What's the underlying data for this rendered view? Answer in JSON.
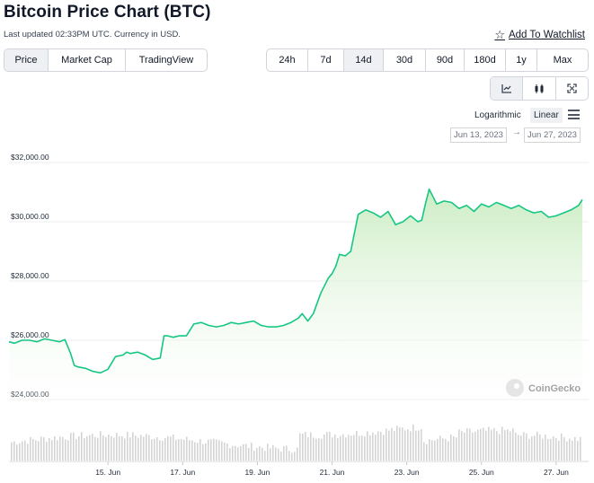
{
  "header": {
    "title": "Bitcoin Price Chart (BTC)",
    "last_updated": "Last updated 02:33PM UTC. Currency in USD.",
    "watchlist_label": "Add To Watchlist",
    "watchlist_icon": "star-outline-icon"
  },
  "type_tabs": [
    {
      "label": "Price",
      "active": true
    },
    {
      "label": "Market Cap",
      "active": false
    },
    {
      "label": "TradingView",
      "active": false
    }
  ],
  "range_tabs": [
    {
      "label": "24h",
      "active": false
    },
    {
      "label": "7d",
      "active": false
    },
    {
      "label": "14d",
      "active": true
    },
    {
      "label": "30d",
      "active": false
    },
    {
      "label": "90d",
      "active": false
    },
    {
      "label": "180d",
      "active": false
    },
    {
      "label": "1y",
      "active": false
    },
    {
      "label": "Max",
      "active": false
    }
  ],
  "view_buttons": [
    {
      "icon": "line-chart-icon",
      "active": true
    },
    {
      "icon": "candlestick-icon",
      "active": false
    },
    {
      "icon": "fullscreen-icon",
      "active": false
    }
  ],
  "scale": {
    "logarithmic_label": "Logarithmic",
    "linear_label": "Linear",
    "selected": "Linear",
    "menu_icon": "hamburger-menu-icon"
  },
  "date_range": {
    "from": "Jun 13, 2023",
    "to": "Jun 27, 2023",
    "separator": "→"
  },
  "watermark": "CoinGecko",
  "colors": {
    "line": "#16c784",
    "area_top": "#c9ecc0",
    "volume": "#d4d4d4",
    "grid": "#ededed"
  },
  "chart_data": {
    "type": "area",
    "ylim": [
      23900,
      32400
    ],
    "y_ticks": [
      24000,
      26000,
      28000,
      30000,
      32000
    ],
    "y_tick_labels": [
      "$24,000.00",
      "$26,000.00",
      "$28,000.00",
      "$30,000.00",
      "$32,000.00"
    ],
    "x_range": [
      12.35,
      27.7
    ],
    "x_ticks": [
      15,
      17,
      19,
      21,
      23,
      25,
      27
    ],
    "x_tick_labels": [
      "15. Jun",
      "17. Jun",
      "19. Jun",
      "21. Jun",
      "23. Jun",
      "25. Jun",
      "27. Jun"
    ],
    "grid": true,
    "series": [
      {
        "x": [
          12.35,
          12.5,
          12.7,
          12.9,
          13.1,
          13.3,
          13.5,
          13.7,
          13.85,
          14.0,
          14.1,
          14.2,
          14.4,
          14.6,
          14.8,
          15.0,
          15.2,
          15.4,
          15.5,
          15.6,
          15.7,
          15.8,
          16.0,
          16.2,
          16.4,
          16.5,
          16.6,
          16.75,
          16.9,
          17.1,
          17.3,
          17.5,
          17.7,
          17.9,
          18.1,
          18.3,
          18.5,
          18.7,
          18.9,
          19.1,
          19.3,
          19.5,
          19.7,
          19.9,
          20.1,
          20.2,
          20.35,
          20.5,
          20.7,
          20.9,
          21.0,
          21.1,
          21.2,
          21.35,
          21.5,
          21.7,
          21.9,
          22.1,
          22.3,
          22.5,
          22.7,
          22.9,
          23.1,
          23.3,
          23.4,
          23.5,
          23.6,
          23.8,
          24.0,
          24.2,
          24.4,
          24.6,
          24.8,
          25.0,
          25.2,
          25.4,
          25.6,
          25.8,
          26.0,
          26.2,
          26.4,
          26.6,
          26.8,
          27.0,
          27.2,
          27.4,
          27.6,
          27.7
        ],
        "y": [
          25950,
          25900,
          26000,
          26000,
          25950,
          26050,
          26000,
          25950,
          26020,
          25550,
          25150,
          25100,
          25050,
          24950,
          24900,
          25020,
          25450,
          25500,
          25600,
          25550,
          25580,
          25600,
          25500,
          25350,
          25400,
          26150,
          26150,
          26100,
          26150,
          26150,
          26550,
          26600,
          26500,
          26450,
          26500,
          26600,
          26550,
          26600,
          26650,
          26500,
          26450,
          26450,
          26500,
          26600,
          26750,
          26900,
          26650,
          26900,
          27600,
          28100,
          28250,
          28500,
          28900,
          28850,
          29000,
          30250,
          30400,
          30300,
          30150,
          30350,
          29900,
          30000,
          30200,
          30000,
          30050,
          30600,
          31100,
          30600,
          30700,
          30650,
          30450,
          30550,
          30350,
          30600,
          30500,
          30650,
          30550,
          30450,
          30550,
          30400,
          30300,
          30350,
          30150,
          30200,
          30300,
          30400,
          30550,
          30750
        ]
      }
    ]
  }
}
